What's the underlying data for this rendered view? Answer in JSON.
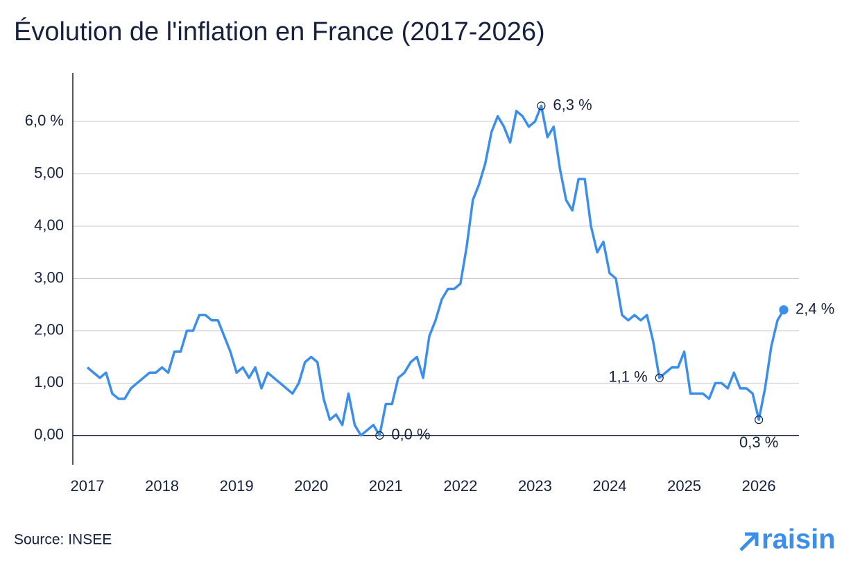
{
  "chart_data": {
    "type": "line",
    "title": "Évolution de l'inflation en France (2017-2026)",
    "categories": [
      "2017",
      null,
      null,
      null,
      null,
      null,
      null,
      null,
      null,
      null,
      null,
      null,
      "2018",
      null,
      null,
      null,
      null,
      null,
      null,
      null,
      null,
      null,
      null,
      null,
      "2019",
      null,
      null,
      null,
      null,
      null,
      null,
      null,
      null,
      null,
      null,
      null,
      "2020",
      null,
      null,
      null,
      null,
      null,
      null,
      null,
      null,
      null,
      null,
      null,
      "2021",
      null,
      null,
      null,
      null,
      null,
      null,
      null,
      null,
      null,
      null,
      null,
      "2022",
      null,
      null,
      null,
      null,
      null,
      null,
      null,
      null,
      null,
      null,
      null,
      "2023",
      null,
      null,
      null,
      null,
      null,
      null,
      null,
      null,
      null,
      null,
      null,
      "2024",
      null,
      null,
      null,
      null,
      null,
      null,
      null,
      null,
      null,
      null,
      null,
      "2025",
      null,
      null,
      null,
      null,
      null,
      null,
      null,
      null,
      null,
      null,
      null,
      "2026",
      null,
      null,
      null,
      null
    ],
    "series": [
      {
        "name": "Inflation",
        "color": "#3b8fea",
        "values": [
          1.3,
          1.2,
          1.1,
          1.2,
          0.8,
          0.7,
          0.7,
          0.9,
          1.0,
          1.1,
          1.2,
          1.2,
          1.3,
          1.2,
          1.6,
          1.6,
          2.0,
          2.0,
          2.3,
          2.3,
          2.2,
          2.2,
          1.9,
          1.6,
          1.2,
          1.3,
          1.1,
          1.3,
          0.9,
          1.2,
          1.1,
          1.0,
          0.9,
          0.8,
          1.0,
          1.4,
          1.5,
          1.4,
          0.7,
          0.3,
          0.4,
          0.2,
          0.8,
          0.2,
          0.0,
          0.1,
          0.2,
          0.0,
          0.6,
          0.6,
          1.1,
          1.2,
          1.4,
          1.5,
          1.1,
          1.9,
          2.2,
          2.6,
          2.8,
          2.8,
          2.9,
          3.6,
          4.5,
          4.8,
          5.2,
          5.8,
          6.1,
          5.9,
          5.6,
          6.2,
          6.1,
          5.9,
          6.0,
          6.3,
          5.7,
          5.9,
          5.1,
          4.5,
          4.3,
          4.9,
          4.9,
          4.0,
          3.5,
          3.7,
          3.1,
          3.0,
          2.3,
          2.2,
          2.3,
          2.2,
          2.3,
          1.8,
          1.1,
          1.2,
          1.3,
          1.3,
          1.6,
          0.8,
          0.8,
          0.8,
          0.7,
          1.0,
          1.0,
          0.9,
          1.2,
          0.9,
          0.9,
          0.8,
          0.3,
          0.9,
          1.7,
          2.2,
          2.4
        ],
        "value_labels": [
          null,
          null,
          null,
          null,
          null,
          null,
          null,
          null,
          null,
          null,
          null,
          null,
          null,
          null,
          null,
          null,
          null,
          null,
          null,
          null,
          null,
          null,
          null,
          null,
          null,
          null,
          null,
          null,
          null,
          null,
          null,
          null,
          null,
          null,
          null,
          null,
          null,
          null,
          null,
          null,
          null,
          null,
          null,
          null,
          null,
          null,
          null,
          "0,0 %",
          null,
          null,
          null,
          null,
          null,
          null,
          null,
          null,
          null,
          null,
          null,
          null,
          null,
          null,
          null,
          null,
          null,
          null,
          null,
          null,
          null,
          null,
          null,
          null,
          null,
          "6,3 %",
          null,
          null,
          null,
          null,
          null,
          null,
          null,
          null,
          null,
          null,
          null,
          null,
          null,
          null,
          null,
          null,
          null,
          null,
          "1,1 %",
          null,
          null,
          null,
          null,
          null,
          null,
          null,
          null,
          null,
          null,
          null,
          null,
          null,
          null,
          null,
          "0,3 %",
          null,
          null,
          null,
          "2,4 %"
        ]
      }
    ],
    "ylim": [
      -0.56,
      6.93
    ],
    "yticks": [
      {
        "value": 0,
        "label": "0,00"
      },
      {
        "value": 1,
        "label": "1,00"
      },
      {
        "value": 2,
        "label": "2,00"
      },
      {
        "value": 3,
        "label": "3,00"
      },
      {
        "value": 4,
        "label": "4,00"
      },
      {
        "value": 5,
        "label": "5,00"
      },
      {
        "value": 6,
        "label": "6,0 %"
      }
    ],
    "grid": true
  },
  "footer": {
    "source": "Source: INSEE",
    "brand": "raisin"
  }
}
